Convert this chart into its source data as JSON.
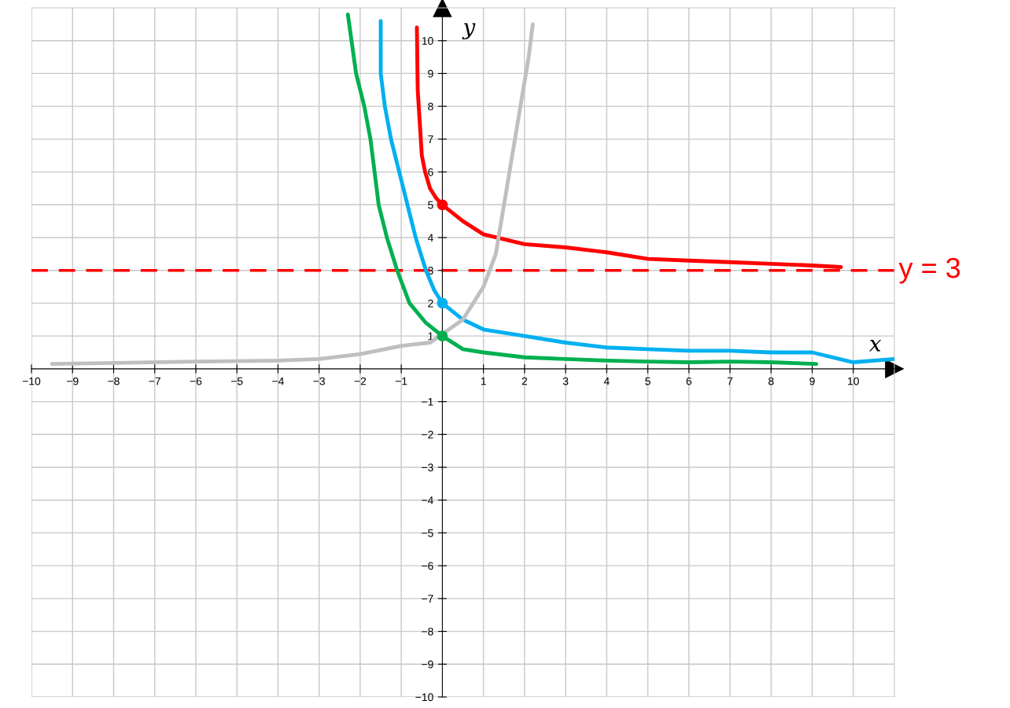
{
  "chart_data": {
    "type": "line",
    "xlabel": "x",
    "ylabel": "y",
    "xlim": [
      -10,
      11
    ],
    "ylim": [
      -10,
      11
    ],
    "xticks": [
      {
        "value": -10,
        "label": "−10"
      },
      {
        "value": -9,
        "label": "−9"
      },
      {
        "value": -8,
        "label": "−8"
      },
      {
        "value": -7,
        "label": "−7"
      },
      {
        "value": -6,
        "label": "−6"
      },
      {
        "value": -5,
        "label": "−5"
      },
      {
        "value": -4,
        "label": "−4"
      },
      {
        "value": -3,
        "label": "−3"
      },
      {
        "value": -2,
        "label": "−2"
      },
      {
        "value": -1,
        "label": "−1"
      },
      1,
      2,
      3,
      4,
      5,
      6,
      7,
      8,
      9,
      10
    ],
    "yticks": [
      {
        "value": -10,
        "label": "−10"
      },
      {
        "value": -9,
        "label": "−9"
      },
      {
        "value": -8,
        "label": "−8"
      },
      {
        "value": -7,
        "label": "−7"
      },
      {
        "value": -6,
        "label": "−6"
      },
      {
        "value": -5,
        "label": "−5"
      },
      {
        "value": -4,
        "label": "−4"
      },
      {
        "value": -3,
        "label": "−3"
      },
      {
        "value": -2,
        "label": "−2"
      },
      {
        "value": -1,
        "label": "−1"
      },
      1,
      2,
      3,
      4,
      5,
      6,
      7,
      8,
      9,
      10
    ],
    "grid": true,
    "line_style": "solid",
    "series": [
      {
        "color": "#ff0000",
        "x": [
          -0.62,
          -0.6,
          -0.55,
          -0.5,
          -0.42,
          -0.3,
          -0.15,
          0,
          0.5,
          1,
          2,
          3,
          4,
          5,
          6,
          7,
          8,
          9,
          9.7
        ],
        "values": [
          10.4,
          8.5,
          7.5,
          6.5,
          6,
          5.5,
          5.2,
          5,
          4.5,
          4.1,
          3.8,
          3.7,
          3.55,
          3.35,
          3.3,
          3.25,
          3.2,
          3.15,
          3.1
        ]
      },
      {
        "color": "#00b0f0",
        "x": [
          -1.5,
          -1.5,
          -1.4,
          -1.25,
          -1.05,
          -0.85,
          -0.65,
          -0.4,
          -0.2,
          0,
          0.5,
          1,
          2,
          3,
          4,
          5,
          6,
          7,
          8,
          9,
          10,
          11
        ],
        "values": [
          10.6,
          9,
          8,
          7,
          6,
          5,
          4,
          3,
          2.4,
          2,
          1.5,
          1.2,
          1,
          0.8,
          0.65,
          0.6,
          0.55,
          0.55,
          0.5,
          0.5,
          0.2,
          0.3
        ]
      },
      {
        "color": "#00b050",
        "x": [
          -2.3,
          -2.1,
          -1.9,
          -1.75,
          -1.65,
          -1.55,
          -1.35,
          -1.1,
          -0.8,
          -0.4,
          0,
          0.5,
          1,
          2,
          3,
          4,
          5,
          6,
          7,
          8,
          9.1
        ],
        "values": [
          10.8,
          9,
          8,
          7,
          6,
          5,
          4,
          3,
          2,
          1.4,
          1,
          0.6,
          0.5,
          0.35,
          0.3,
          0.25,
          0.22,
          0.2,
          0.22,
          0.2,
          0.15
        ]
      },
      {
        "color": "#bfbfbf",
        "x": [
          -9.5,
          -8,
          -6,
          -4,
          -3,
          -2,
          -1,
          -0.3,
          0.5,
          1,
          1.3,
          1.5,
          1.7,
          1.9,
          2.1,
          2.2
        ],
        "values": [
          0.15,
          0.18,
          0.22,
          0.25,
          0.3,
          0.45,
          0.7,
          0.8,
          1.5,
          2.5,
          3.5,
          5,
          6.5,
          8,
          9.5,
          10.5
        ]
      },
      {
        "type": "scatter",
        "marker": "circle",
        "color": "#ff0000",
        "x": [
          0
        ],
        "values": [
          5
        ]
      },
      {
        "type": "scatter",
        "marker": "circle",
        "color": "#00b0f0",
        "x": [
          0
        ],
        "values": [
          2
        ]
      },
      {
        "type": "scatter",
        "marker": "circle",
        "color": "#00b050",
        "x": [
          0
        ],
        "values": [
          1
        ]
      }
    ],
    "ref_lines": [
      {
        "axis": "y",
        "value": 3,
        "label": "y = 3",
        "color": "#ff0000",
        "line_style": "dashed"
      }
    ]
  }
}
